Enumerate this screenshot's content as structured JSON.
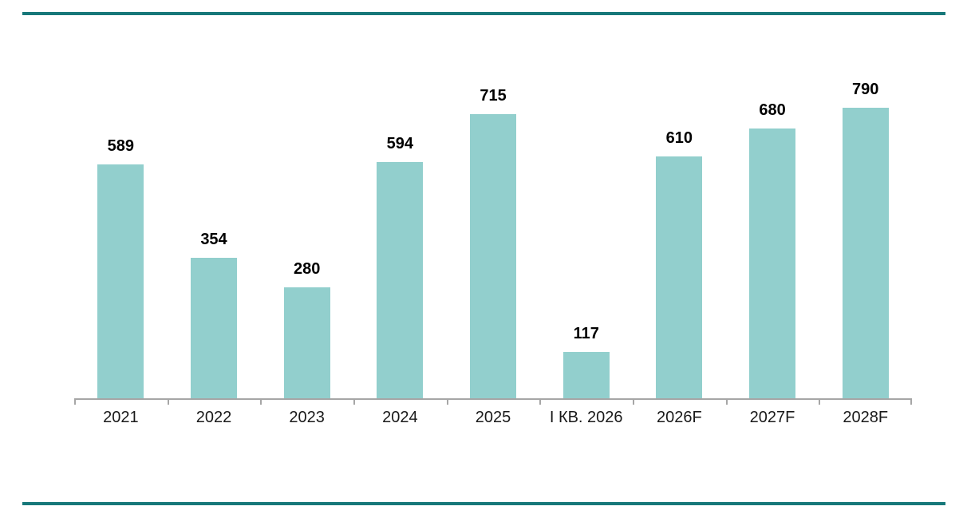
{
  "colors": {
    "accent_rule": "#17787a",
    "bar_fill": "#92cfcd",
    "axis_line": "#a6a6a6",
    "value_label": "#000000",
    "category_label": "#1a1a1a",
    "background": "#ffffff"
  },
  "chart_data": {
    "type": "bar",
    "categories": [
      "2021",
      "2022",
      "2023",
      "2024",
      "2025",
      "I КВ. 2026",
      "2026F",
      "2027F",
      "2028F"
    ],
    "values": [
      589,
      354,
      280,
      594,
      715,
      117,
      610,
      680,
      790
    ],
    "value_labels": [
      "589",
      "354",
      "280",
      "594",
      "715",
      "117",
      "610",
      "680",
      "790"
    ],
    "ylim": [
      0,
      800
    ],
    "grid": false,
    "legend": false,
    "value_labels_position": "above-bars",
    "axis_ticks": "outside-bottom"
  }
}
